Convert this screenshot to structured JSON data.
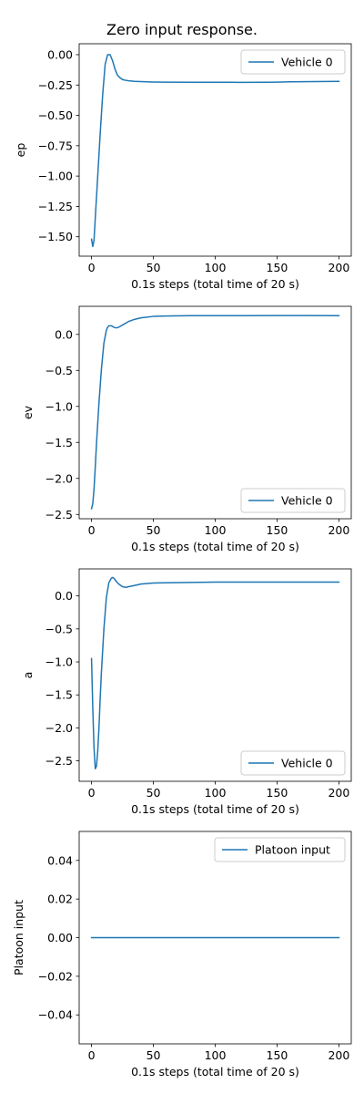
{
  "figure": {
    "title": "Zero input response."
  },
  "colors": {
    "line": "#1f77b4",
    "axes": "#000000",
    "background": "#ffffff",
    "legend_frame": "#cccccc"
  },
  "chart_data": [
    {
      "type": "line",
      "xlabel": "0.1s steps (total time of 20 s)",
      "ylabel": "ep",
      "xlim": [
        -10,
        210
      ],
      "ylim": [
        -1.66,
        0.09
      ],
      "xticks": [
        0,
        50,
        100,
        150,
        200
      ],
      "xtick_labels": [
        "0",
        "50",
        "100",
        "150",
        "200"
      ],
      "yticks": [
        0.0,
        -0.25,
        -0.5,
        -0.75,
        -1.0,
        -1.25,
        -1.5
      ],
      "ytick_labels": [
        "0.00",
        "−0.25",
        "−0.50",
        "−0.75",
        "−1.00",
        "−1.25",
        "−1.50"
      ],
      "legend": {
        "position": "upper right",
        "entries": [
          "Vehicle 0"
        ]
      },
      "series": [
        {
          "name": "Vehicle 0",
          "x": [
            0,
            1,
            2,
            3,
            5,
            7,
            9,
            11,
            13,
            15,
            17,
            19,
            21,
            23,
            25,
            27,
            30,
            35,
            40,
            50,
            60,
            80,
            100,
            120,
            140,
            150,
            160,
            180,
            200
          ],
          "y": [
            -1.52,
            -1.58,
            -1.53,
            -1.35,
            -1.0,
            -0.65,
            -0.33,
            -0.08,
            0.0,
            0.0,
            -0.05,
            -0.12,
            -0.17,
            -0.19,
            -0.205,
            -0.21,
            -0.215,
            -0.22,
            -0.222,
            -0.225,
            -0.226,
            -0.227,
            -0.227,
            -0.228,
            -0.227,
            -0.226,
            -0.224,
            -0.222,
            -0.22
          ]
        }
      ]
    },
    {
      "type": "line",
      "xlabel": "0.1s steps (total time of 20 s)",
      "ylabel": "ev",
      "xlim": [
        -10,
        210
      ],
      "ylim": [
        -2.56,
        0.39
      ],
      "xticks": [
        0,
        50,
        100,
        150,
        200
      ],
      "xtick_labels": [
        "0",
        "50",
        "100",
        "150",
        "200"
      ],
      "yticks": [
        0.0,
        -0.5,
        -1.0,
        -1.5,
        -2.0,
        -2.5
      ],
      "ytick_labels": [
        "0.0",
        "−0.5",
        "−1.0",
        "−1.5",
        "−2.0",
        "−2.5"
      ],
      "legend": {
        "position": "lower right",
        "entries": [
          "Vehicle 0"
        ]
      },
      "series": [
        {
          "name": "Vehicle 0",
          "x": [
            0,
            1,
            2,
            3,
            4,
            6,
            8,
            10,
            12,
            13,
            14,
            16,
            18,
            20,
            22,
            25,
            30,
            35,
            40,
            50,
            60,
            80,
            100,
            120,
            150,
            170,
            200
          ],
          "y": [
            -2.42,
            -2.35,
            -2.15,
            -1.85,
            -1.52,
            -0.95,
            -0.48,
            -0.12,
            0.06,
            0.1,
            0.12,
            0.12,
            0.1,
            0.09,
            0.1,
            0.13,
            0.18,
            0.21,
            0.23,
            0.25,
            0.255,
            0.26,
            0.26,
            0.26,
            0.262,
            0.262,
            0.26
          ]
        }
      ]
    },
    {
      "type": "line",
      "xlabel": "0.1s steps (total time of 20 s)",
      "ylabel": "a",
      "xlim": [
        -10,
        210
      ],
      "ylim": [
        -2.81,
        0.41
      ],
      "xticks": [
        0,
        50,
        100,
        150,
        200
      ],
      "xtick_labels": [
        "0",
        "50",
        "100",
        "150",
        "200"
      ],
      "yticks": [
        0.0,
        -0.5,
        -1.0,
        -1.5,
        -2.0,
        -2.5
      ],
      "ytick_labels": [
        "0.0",
        "−0.5",
        "−1.0",
        "−1.5",
        "−2.0",
        "−2.5"
      ],
      "legend": {
        "position": "lower right",
        "entries": [
          "Vehicle 0"
        ]
      },
      "series": [
        {
          "name": "Vehicle 0",
          "x": [
            0,
            1,
            2,
            3,
            4,
            5,
            6,
            7,
            8,
            10,
            12,
            14,
            16,
            17,
            18,
            20,
            22,
            25,
            28,
            30,
            35,
            40,
            50,
            60,
            80,
            100,
            150,
            200
          ],
          "y": [
            -0.95,
            -1.7,
            -2.3,
            -2.62,
            -2.58,
            -2.35,
            -2.0,
            -1.55,
            -1.15,
            -0.5,
            -0.02,
            0.2,
            0.27,
            0.28,
            0.27,
            0.22,
            0.18,
            0.14,
            0.13,
            0.14,
            0.16,
            0.18,
            0.195,
            0.2,
            0.205,
            0.21,
            0.21,
            0.21
          ]
        }
      ]
    },
    {
      "type": "line",
      "xlabel": "0.1s steps (total time of 20 s)",
      "ylabel": "Platoon input",
      "xlim": [
        -10,
        210
      ],
      "ylim": [
        -0.055,
        0.055
      ],
      "xticks": [
        0,
        50,
        100,
        150,
        200
      ],
      "xtick_labels": [
        "0",
        "50",
        "100",
        "150",
        "200"
      ],
      "yticks": [
        0.04,
        0.02,
        0.0,
        -0.02,
        -0.04
      ],
      "ytick_labels": [
        "0.04",
        "0.02",
        "0.00",
        "−0.02",
        "−0.04"
      ],
      "legend": {
        "position": "upper right",
        "entries": [
          "Platoon input"
        ]
      },
      "series": [
        {
          "name": "Platoon input",
          "x": [
            0,
            200
          ],
          "y": [
            0,
            0
          ]
        }
      ]
    }
  ]
}
